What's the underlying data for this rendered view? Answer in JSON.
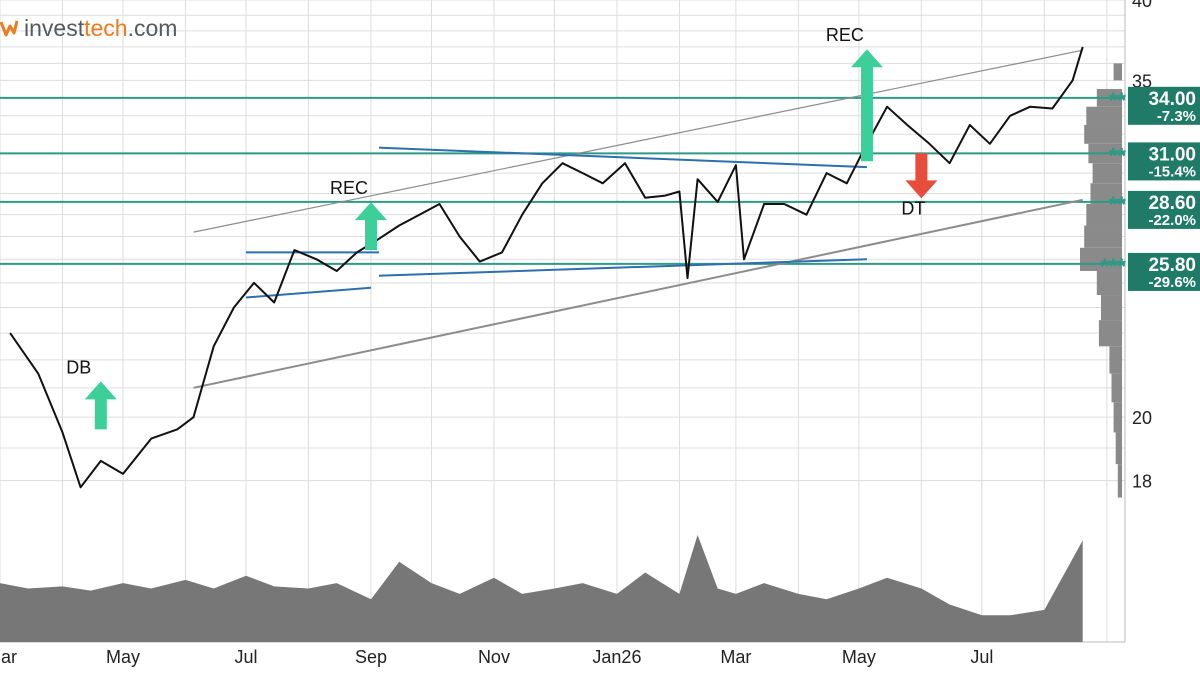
{
  "logo": {
    "part1": "invest",
    "part2": "tech",
    "part3": ".com"
  },
  "chart_data": {
    "type": "line",
    "scale": "log",
    "ylim": [
      17,
      40
    ],
    "y_ticks": [
      {
        "value": 40,
        "label": "40"
      },
      {
        "value": 35,
        "label": "35"
      },
      {
        "value": 20,
        "label": "20"
      },
      {
        "value": 18,
        "label": "18"
      }
    ],
    "x_tick_labels": [
      "Mar",
      "May",
      "Jul",
      "Sep",
      "Nov",
      "Jan26",
      "Mar",
      "May",
      "Jul"
    ],
    "price": {
      "x": [
        "2025-03-06",
        "2025-03-20",
        "2025-04-01",
        "2025-04-10",
        "2025-04-20",
        "2025-05-01",
        "2025-05-15",
        "2025-05-28",
        "2025-06-05",
        "2025-06-15",
        "2025-06-25",
        "2025-07-05",
        "2025-07-15",
        "2025-07-25",
        "2025-08-05",
        "2025-08-15",
        "2025-08-25",
        "2025-09-05",
        "2025-09-15",
        "2025-09-25",
        "2025-10-05",
        "2025-10-15",
        "2025-10-25",
        "2025-11-05",
        "2025-11-15",
        "2025-11-25",
        "2025-12-05",
        "2025-12-15",
        "2025-12-25",
        "2026-01-05",
        "2026-01-15",
        "2026-01-25",
        "2026-02-01",
        "2026-02-05",
        "2026-02-10",
        "2026-02-20",
        "2026-03-01",
        "2026-03-05",
        "2026-03-15",
        "2026-03-25",
        "2026-04-05",
        "2026-04-15",
        "2026-04-25",
        "2026-05-05",
        "2026-05-15",
        "2026-05-25",
        "2026-06-05",
        "2026-06-15",
        "2026-06-25",
        "2026-07-05",
        "2026-07-15",
        "2026-07-25",
        "2026-08-05",
        "2026-08-15",
        "2026-08-20"
      ],
      "y": [
        23.0,
        21.5,
        19.5,
        17.8,
        18.6,
        18.2,
        19.3,
        19.6,
        20.0,
        22.5,
        24.0,
        25.0,
        24.2,
        26.4,
        26.0,
        25.5,
        26.3,
        26.9,
        27.5,
        28.0,
        28.5,
        27.0,
        25.9,
        26.3,
        28.0,
        29.5,
        30.5,
        30.0,
        29.5,
        30.5,
        28.8,
        28.9,
        29.1,
        25.2,
        29.7,
        28.6,
        30.4,
        26.0,
        28.5,
        28.5,
        28.0,
        30.0,
        29.5,
        31.5,
        33.5,
        32.5,
        31.5,
        30.5,
        32.5,
        31.5,
        33.0,
        33.5,
        33.4,
        35.0,
        37.0
      ]
    },
    "price_levels": [
      {
        "value": 34.0,
        "label": "34.00",
        "pct": "-7.3%",
        "stars": "**"
      },
      {
        "value": 31.0,
        "label": "31.00",
        "pct": "-15.4%",
        "stars": "**"
      },
      {
        "value": 28.6,
        "label": "28.60",
        "pct": "-22.0%",
        "stars": "**"
      },
      {
        "value": 25.8,
        "label": "25.80",
        "pct": "-29.6%",
        "stars": "***"
      }
    ],
    "signals": [
      {
        "label": "DB",
        "date": "2025-04-20",
        "value": 19.6,
        "direction": "up"
      },
      {
        "label": "REC",
        "date": "2025-09-01",
        "value": 26.4,
        "direction": "up"
      },
      {
        "label": "REC",
        "date": "2026-05-05",
        "value": 30.6,
        "direction": "up"
      },
      {
        "label": "DT",
        "date": "2026-06-01",
        "value": 31.0,
        "direction": "down"
      }
    ],
    "trend_channel": {
      "upper": [
        [
          "2025-06-05",
          27.2
        ],
        [
          "2026-08-20",
          36.8
        ]
      ],
      "lower": [
        [
          "2025-06-05",
          21.0
        ],
        [
          "2026-08-20",
          28.7
        ]
      ]
    },
    "pattern_lines": [
      {
        "color": "#2e6fb0",
        "points": [
          [
            "2025-07-01",
            24.4
          ],
          [
            "2025-09-01",
            24.8
          ]
        ]
      },
      {
        "color": "#2e6fb0",
        "points": [
          [
            "2025-07-01",
            26.3
          ],
          [
            "2025-09-05",
            26.3
          ]
        ]
      },
      {
        "color": "#2e6fb0",
        "points": [
          [
            "2025-09-05",
            25.3
          ],
          [
            "2026-05-05",
            26.0
          ]
        ]
      },
      {
        "color": "#2e6fb0",
        "points": [
          [
            "2025-09-05",
            31.3
          ],
          [
            "2026-05-05",
            30.3
          ]
        ]
      }
    ],
    "colors": {
      "price": "#111111",
      "level": "#2d9a86",
      "level_label_bg": "#1f7a68",
      "signal_up": "#3ccf9a",
      "signal_down": "#e84d3c",
      "channel": "#8c8c8c",
      "volume": "#777777",
      "grid": "#dddddd"
    },
    "volume": {
      "x": [
        "2025-03-01",
        "2025-03-15",
        "2025-04-01",
        "2025-04-15",
        "2025-05-01",
        "2025-05-15",
        "2025-06-01",
        "2025-06-15",
        "2025-07-01",
        "2025-07-15",
        "2025-08-01",
        "2025-08-15",
        "2025-09-01",
        "2025-09-15",
        "2025-10-01",
        "2025-10-15",
        "2025-11-01",
        "2025-11-15",
        "2025-12-01",
        "2025-12-15",
        "2026-01-01",
        "2026-01-15",
        "2026-02-01",
        "2026-02-10",
        "2026-02-20",
        "2026-03-01",
        "2026-03-15",
        "2026-04-01",
        "2026-04-15",
        "2026-05-01",
        "2026-05-15",
        "2026-06-01",
        "2026-06-15",
        "2026-07-01",
        "2026-07-15",
        "2026-08-01",
        "2026-08-20"
      ],
      "values": [
        0.55,
        0.5,
        0.52,
        0.48,
        0.55,
        0.5,
        0.58,
        0.5,
        0.62,
        0.52,
        0.5,
        0.55,
        0.4,
        0.75,
        0.55,
        0.45,
        0.6,
        0.45,
        0.5,
        0.55,
        0.45,
        0.65,
        0.45,
        1.0,
        0.5,
        0.45,
        0.55,
        0.45,
        0.4,
        0.5,
        0.6,
        0.5,
        0.35,
        0.25,
        0.25,
        0.3,
        0.95
      ]
    },
    "volume_profile": [
      {
        "value": 35.5,
        "width": 0.2
      },
      {
        "value": 34.0,
        "width": 0.6
      },
      {
        "value": 33.0,
        "width": 0.85
      },
      {
        "value": 32.0,
        "width": 0.9
      },
      {
        "value": 31.0,
        "width": 0.8
      },
      {
        "value": 30.0,
        "width": 0.7
      },
      {
        "value": 29.0,
        "width": 0.75
      },
      {
        "value": 28.0,
        "width": 0.85
      },
      {
        "value": 27.0,
        "width": 0.9
      },
      {
        "value": 26.0,
        "width": 1.0
      },
      {
        "value": 25.0,
        "width": 0.6
      },
      {
        "value": 24.0,
        "width": 0.5
      },
      {
        "value": 23.0,
        "width": 0.55
      },
      {
        "value": 22.0,
        "width": 0.3
      },
      {
        "value": 21.0,
        "width": 0.25
      },
      {
        "value": 20.0,
        "width": 0.2
      },
      {
        "value": 19.0,
        "width": 0.15
      },
      {
        "value": 18.0,
        "width": 0.1
      }
    ]
  }
}
